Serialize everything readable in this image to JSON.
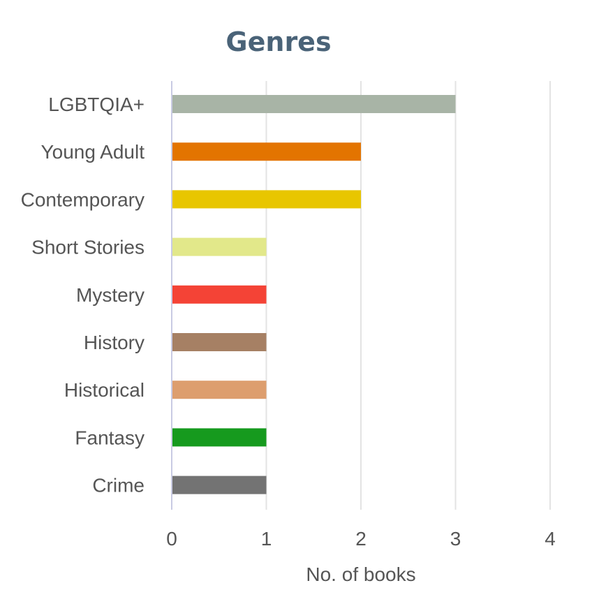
{
  "chart_data": {
    "type": "bar",
    "orientation": "horizontal",
    "title": "Genres",
    "xlabel": "No. of books",
    "ylabel": "",
    "xlim": [
      0,
      4
    ],
    "xticks": [
      0,
      1,
      2,
      3,
      4
    ],
    "grid": true,
    "legend": "none",
    "categories": [
      "LGBTQIA+",
      "Young Adult",
      "Contemporary",
      "Short Stories",
      "Mystery",
      "History",
      "Historical",
      "Fantasy",
      "Crime"
    ],
    "values": [
      3,
      2,
      2,
      1,
      1,
      1,
      1,
      1,
      1
    ],
    "colors": [
      "#a8b4a6",
      "#e37400",
      "#e8c600",
      "#e2e88a",
      "#f44336",
      "#a68064",
      "#dd9e6e",
      "#169a1e",
      "#737373"
    ]
  }
}
